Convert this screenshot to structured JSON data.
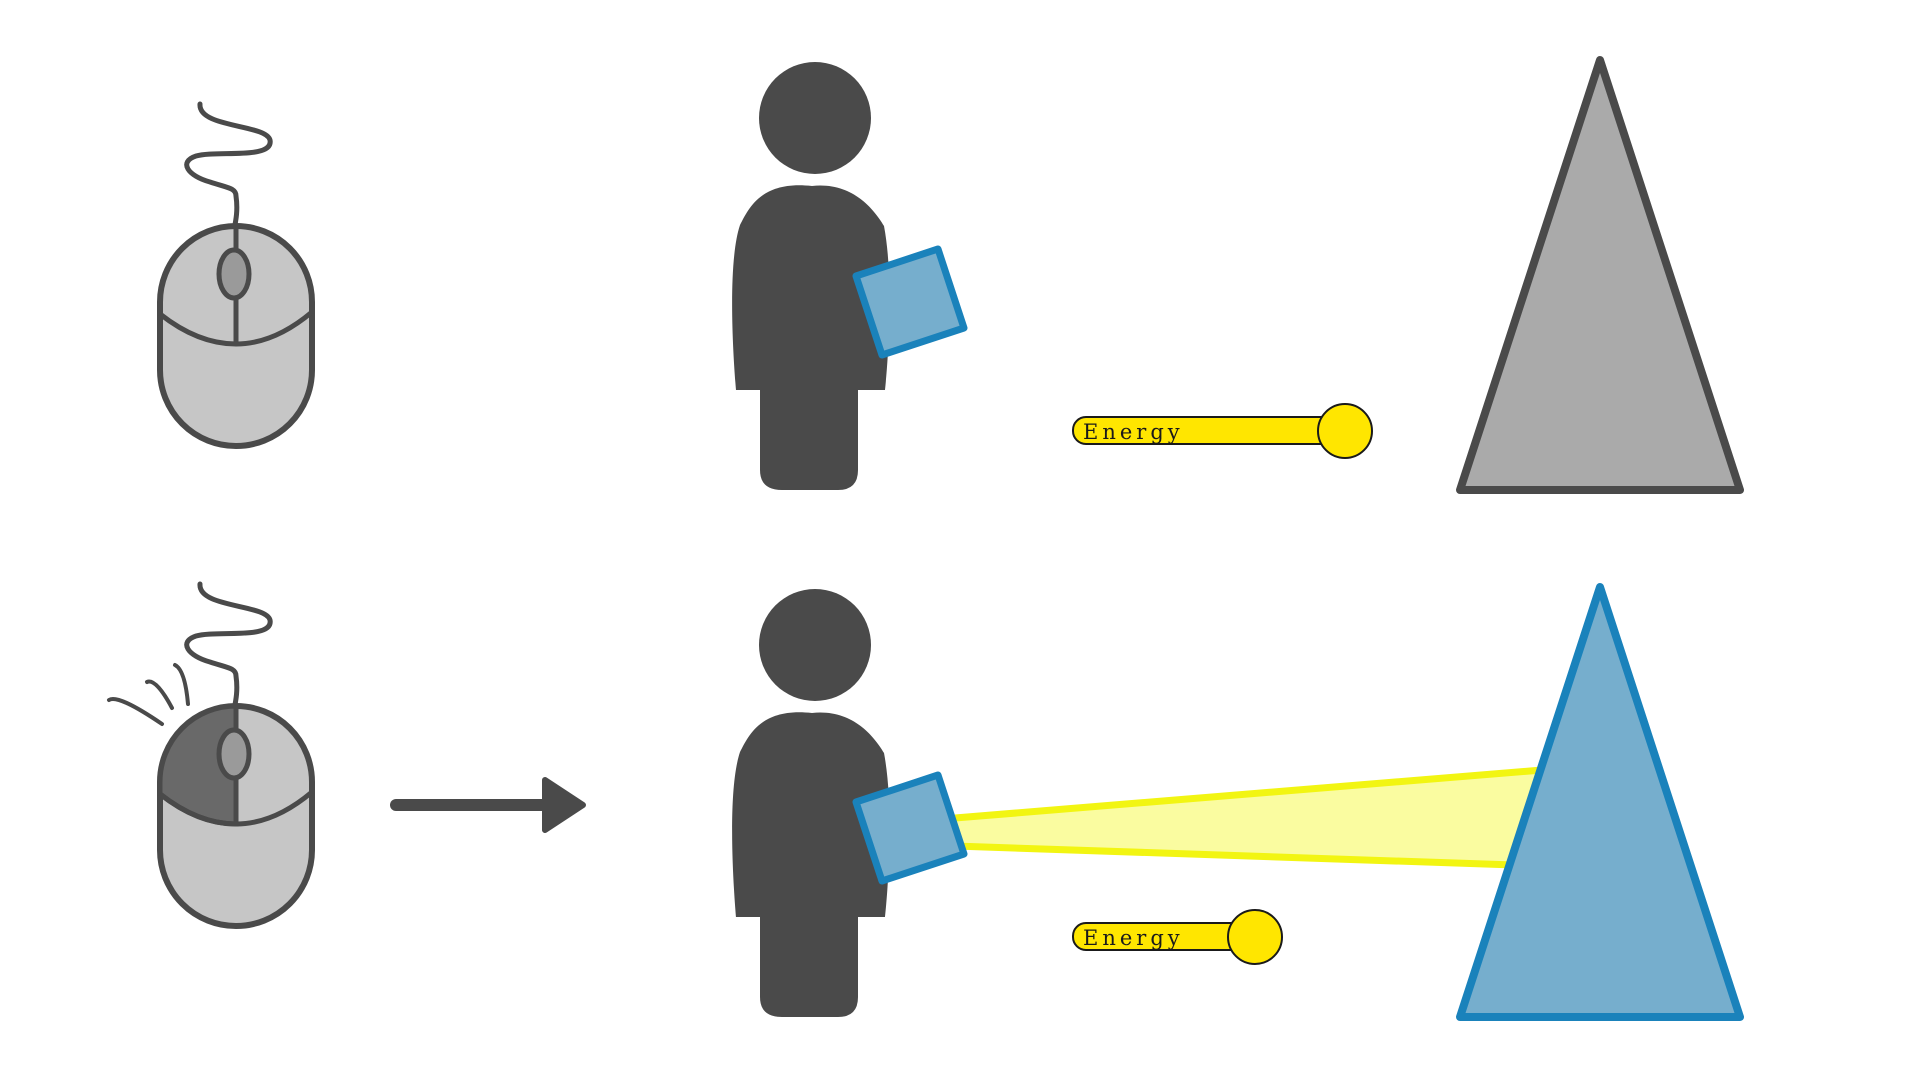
{
  "colors": {
    "dark_gray": "#4a4a4a",
    "light_gray": "#c6c6c6",
    "medium_gray": "#9a9a9a",
    "pressed_gray": "#696969",
    "prism_idle_fill": "#aaaaaa",
    "prism_active_fill": "#76aecd",
    "prism_active_stroke": "#1a82bb",
    "tablet_fill": "#76aecd",
    "tablet_stroke": "#1a82bb",
    "beam_stroke": "#f2f512",
    "beam_fill": "#fafca0",
    "energy_yellow": "#ffe600"
  },
  "icons": {
    "mouse_idle": "computer-mouse-icon",
    "mouse_clicked": "computer-mouse-left-click-icon",
    "person": "person-with-tablet-icon",
    "prism": "triangle-prism-icon",
    "arrow": "right-arrow-icon"
  },
  "rows": [
    {
      "state": "idle",
      "energy": {
        "label": "Energy",
        "level": 1.0
      }
    },
    {
      "state": "left-button-pressed",
      "energy": {
        "label": "Energy",
        "level": 0.6
      }
    }
  ]
}
